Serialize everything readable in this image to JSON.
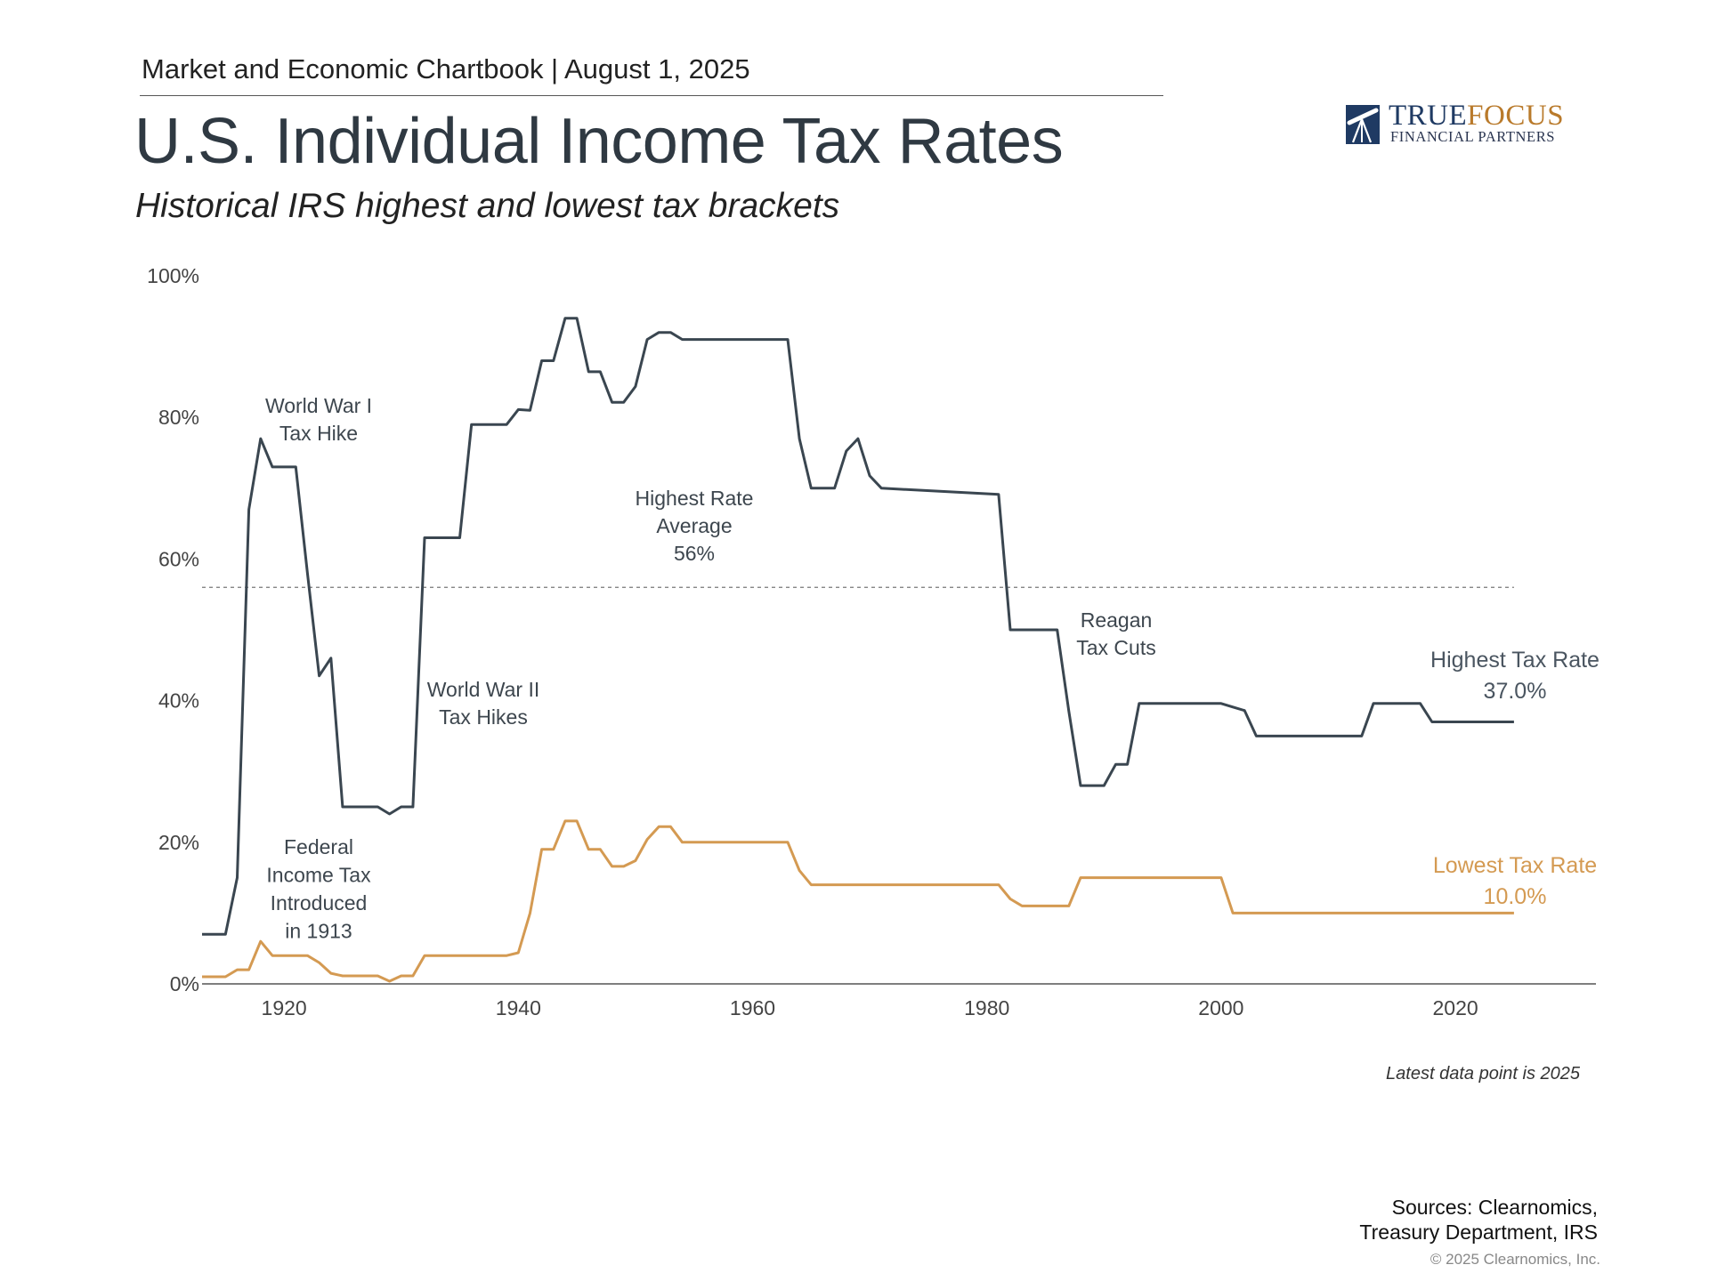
{
  "header": {
    "chartbook": "Market and Economic Chartbook | August 1, 2025",
    "title": "U.S. Individual Income Tax Rates",
    "subtitle": "Historical IRS highest and lowest tax brackets"
  },
  "logo": {
    "brand_part1": "TRUE",
    "brand_part2": "FOCUS",
    "tagline": "FINANCIAL PARTNERS",
    "icon": "telescope-icon",
    "colors": {
      "navy": "#1f3a63",
      "gold": "#b97a2b"
    }
  },
  "chart_data": {
    "type": "line",
    "xlim": [
      1913,
      2032
    ],
    "ylim": [
      0,
      100
    ],
    "x_ticks": [
      1920,
      1940,
      1960,
      1980,
      2000,
      2020
    ],
    "y_ticks": [
      {
        "value": 0,
        "label": "0%"
      },
      {
        "value": 20,
        "label": "20%"
      },
      {
        "value": 40,
        "label": "40%"
      },
      {
        "value": 60,
        "label": "60%"
      },
      {
        "value": 80,
        "label": "80%"
      },
      {
        "value": 100,
        "label": "100%"
      }
    ],
    "grid": false,
    "average_line": {
      "value": 56,
      "style": "dashed",
      "x_end": 2025
    },
    "series": [
      {
        "name": "Highest Tax Rate",
        "end_label": "37.0%",
        "color": "#3a4650",
        "points": [
          [
            1913,
            7
          ],
          [
            1915,
            7
          ],
          [
            1916,
            15
          ],
          [
            1917,
            67
          ],
          [
            1918,
            77
          ],
          [
            1919,
            73
          ],
          [
            1921,
            73
          ],
          [
            1922,
            58
          ],
          [
            1923,
            43.5
          ],
          [
            1924,
            46
          ],
          [
            1925,
            25
          ],
          [
            1928,
            25
          ],
          [
            1929,
            24
          ],
          [
            1930,
            25
          ],
          [
            1931,
            25
          ],
          [
            1932,
            63
          ],
          [
            1935,
            63
          ],
          [
            1936,
            79
          ],
          [
            1939,
            79
          ],
          [
            1940,
            81.1
          ],
          [
            1941,
            81
          ],
          [
            1942,
            88
          ],
          [
            1943,
            88
          ],
          [
            1944,
            94
          ],
          [
            1945,
            94
          ],
          [
            1946,
            86.45
          ],
          [
            1947,
            86.45
          ],
          [
            1948,
            82.13
          ],
          [
            1949,
            82.13
          ],
          [
            1950,
            84.36
          ],
          [
            1951,
            91
          ],
          [
            1952,
            92
          ],
          [
            1953,
            92
          ],
          [
            1954,
            91
          ],
          [
            1963,
            91
          ],
          [
            1964,
            77
          ],
          [
            1965,
            70
          ],
          [
            1967,
            70
          ],
          [
            1968,
            75.25
          ],
          [
            1969,
            77
          ],
          [
            1970,
            71.75
          ],
          [
            1971,
            70
          ],
          [
            1981,
            69.125
          ],
          [
            1982,
            50
          ],
          [
            1986,
            50
          ],
          [
            1987,
            38.5
          ],
          [
            1988,
            28
          ],
          [
            1990,
            28
          ],
          [
            1991,
            31
          ],
          [
            1992,
            31
          ],
          [
            1993,
            39.6
          ],
          [
            2000,
            39.6
          ],
          [
            2001,
            39.1
          ],
          [
            2002,
            38.6
          ],
          [
            2003,
            35
          ],
          [
            2012,
            35
          ],
          [
            2013,
            39.6
          ],
          [
            2017,
            39.6
          ],
          [
            2018,
            37
          ],
          [
            2025,
            37
          ]
        ]
      },
      {
        "name": "Lowest Tax Rate",
        "end_label": "10.0%",
        "color": "#d49a52",
        "points": [
          [
            1913,
            1
          ],
          [
            1915,
            1
          ],
          [
            1916,
            2
          ],
          [
            1917,
            2
          ],
          [
            1918,
            6
          ],
          [
            1919,
            4
          ],
          [
            1922,
            4
          ],
          [
            1923,
            3
          ],
          [
            1924,
            1.5
          ],
          [
            1925,
            1.125
          ],
          [
            1928,
            1.125
          ],
          [
            1929,
            0.375
          ],
          [
            1930,
            1.125
          ],
          [
            1931,
            1.125
          ],
          [
            1932,
            4
          ],
          [
            1939,
            4
          ],
          [
            1940,
            4.4
          ],
          [
            1941,
            10
          ],
          [
            1942,
            19
          ],
          [
            1943,
            19
          ],
          [
            1944,
            23
          ],
          [
            1945,
            23
          ],
          [
            1946,
            19
          ],
          [
            1947,
            19
          ],
          [
            1948,
            16.6
          ],
          [
            1949,
            16.6
          ],
          [
            1950,
            17.4
          ],
          [
            1951,
            20.4
          ],
          [
            1952,
            22.2
          ],
          [
            1953,
            22.2
          ],
          [
            1954,
            20
          ],
          [
            1963,
            20
          ],
          [
            1964,
            16
          ],
          [
            1965,
            14
          ],
          [
            1981,
            14
          ],
          [
            1982,
            12
          ],
          [
            1983,
            11
          ],
          [
            1987,
            11
          ],
          [
            1988,
            15
          ],
          [
            2000,
            15
          ],
          [
            2001,
            10
          ],
          [
            2025,
            10
          ]
        ]
      }
    ],
    "annotations": [
      {
        "id": "wwi",
        "lines": [
          "World War I",
          "Tax Hike"
        ]
      },
      {
        "id": "federal",
        "lines": [
          "Federal",
          "Income Tax",
          "Introduced",
          "in 1913"
        ]
      },
      {
        "id": "wwii",
        "lines": [
          "World War II",
          "Tax Hikes"
        ]
      },
      {
        "id": "average",
        "lines": [
          "Highest Rate",
          "Average",
          "56%"
        ]
      },
      {
        "id": "reagan",
        "lines": [
          "Reagan",
          "Tax Cuts"
        ]
      }
    ]
  },
  "footer": {
    "note": "Latest data point is 2025",
    "sources_line1": "Sources: Clearnomics,",
    "sources_line2": "Treasury Department, IRS",
    "copyright": "© 2025 Clearnomics, Inc."
  }
}
